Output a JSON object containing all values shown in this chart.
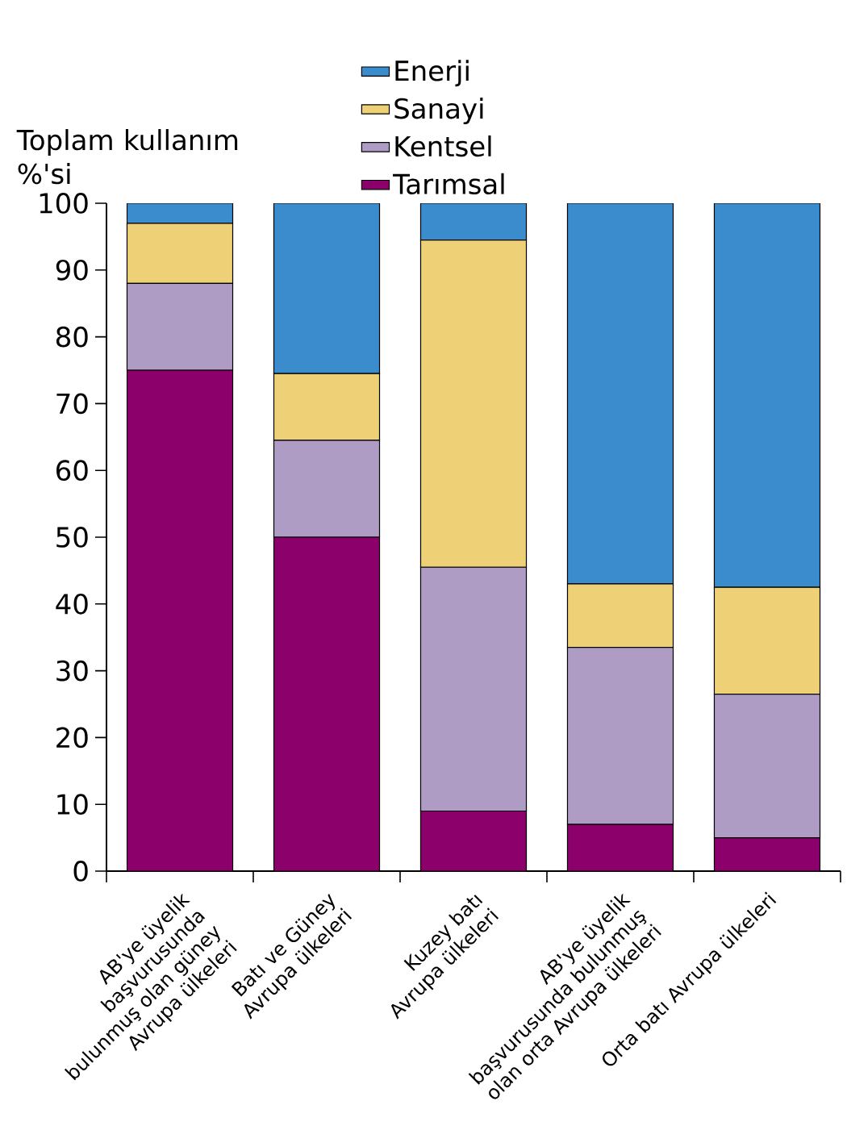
{
  "chart_data": {
    "type": "bar",
    "stacked": true,
    "ylabel": "Toplam kullanım %'si",
    "categories": [
      "AB'ye üyelik başvurusunda bulunmuş olan güney Avrupa ülkeleri",
      "Batı ve Güney Avrupa ülkeleri",
      "Kuzey batı Avrupa ülkeleri",
      "AB'ye üyelik başvurusunda bulunmuş olan orta Avrupa ülkeleri",
      "Orta batı Avrupa ülkeleri"
    ],
    "series": [
      {
        "name": "Tarımsal",
        "color": "#8b006a",
        "values": [
          75,
          50,
          9,
          7,
          5
        ]
      },
      {
        "name": "Kentsel",
        "color": "#ae9cc5",
        "values": [
          13,
          14.5,
          36.5,
          26.5,
          21.5
        ]
      },
      {
        "name": "Sanayi",
        "color": "#eed077",
        "values": [
          9,
          10,
          49,
          9.5,
          16
        ]
      },
      {
        "name": "Enerji",
        "color": "#3a8ccc",
        "values": [
          3,
          25.5,
          5.5,
          57,
          57.5
        ]
      }
    ],
    "ylim": [
      0,
      100
    ],
    "yticks": [
      0,
      10,
      20,
      30,
      40,
      50,
      60,
      70,
      80,
      90,
      100
    ],
    "grid": false,
    "legend": "top"
  }
}
